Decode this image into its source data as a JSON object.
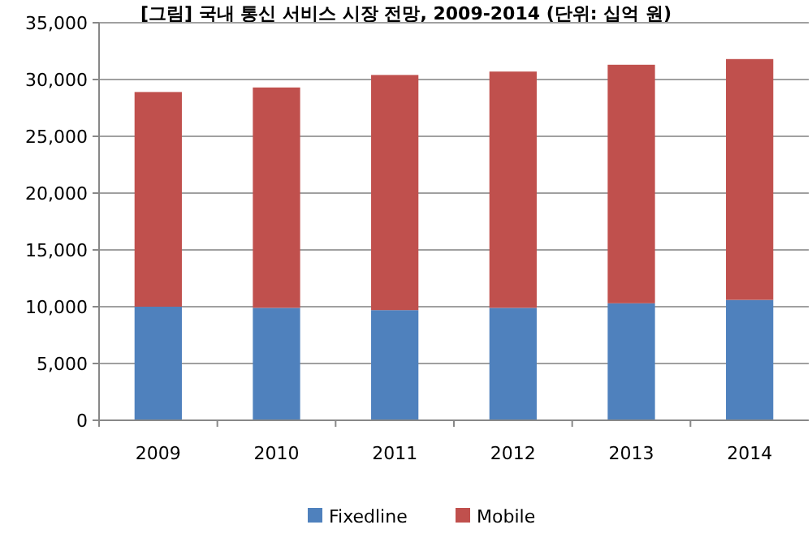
{
  "chart_data": {
    "type": "bar",
    "title": "[그림] 국내 통신 서비스 시장 전망, 2009-2014 (단위: 십억 원)",
    "categories": [
      "2009",
      "2010",
      "2011",
      "2012",
      "2013",
      "2014"
    ],
    "stacked": true,
    "series": [
      {
        "name": "Fixedline",
        "color": "#4f81bd",
        "values": [
          10000,
          9900,
          9700,
          9900,
          10300,
          10600
        ]
      },
      {
        "name": "Mobile",
        "color": "#c0504d",
        "values": [
          18900,
          19400,
          20700,
          20800,
          21000,
          21200
        ]
      }
    ],
    "ylim": [
      0,
      35000
    ],
    "yticks": [
      {
        "value": 0,
        "label": "0"
      },
      {
        "value": 5000,
        "label": "5,000"
      },
      {
        "value": 10000,
        "label": "10,000"
      },
      {
        "value": 15000,
        "label": "15,000"
      },
      {
        "value": 20000,
        "label": "20,000"
      },
      {
        "value": 25000,
        "label": "25,000"
      },
      {
        "value": 30000,
        "label": "30,000"
      },
      {
        "value": 35000,
        "label": "35,000"
      }
    ],
    "grid": "y",
    "legend": "bottom"
  }
}
